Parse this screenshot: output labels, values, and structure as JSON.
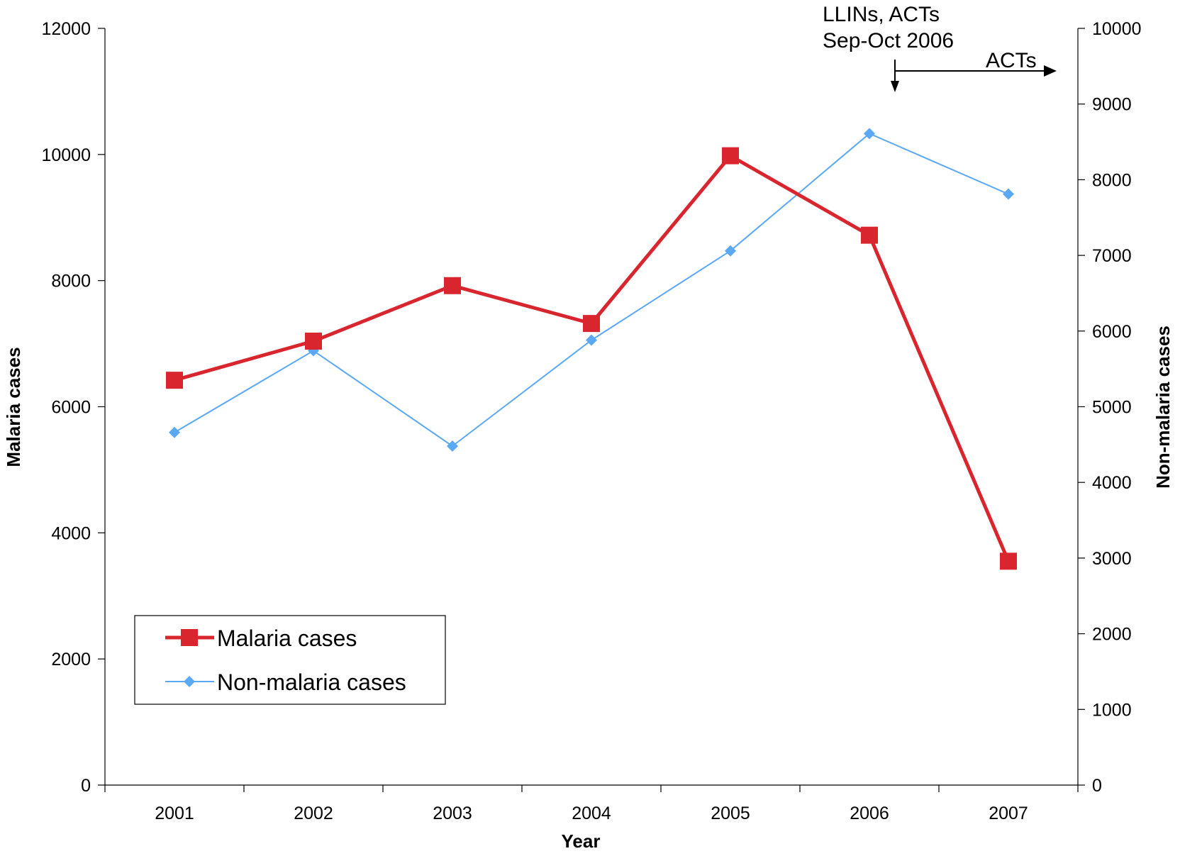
{
  "chart_data": {
    "type": "line",
    "categories": [
      "2001",
      "2002",
      "2003",
      "2004",
      "2005",
      "2006",
      "2007"
    ],
    "series": [
      {
        "name": "Malaria cases",
        "axis": "left",
        "color": "#D9262E",
        "marker": "square",
        "values": [
          6420,
          7040,
          7920,
          7320,
          9980,
          8720,
          3550
        ]
      },
      {
        "name": "Non-malaria cases",
        "axis": "right",
        "color": "#5BA8F5",
        "marker": "diamond",
        "values": [
          4660,
          5740,
          4480,
          5880,
          7060,
          8610,
          7810
        ]
      }
    ],
    "xlabel": "Year",
    "ylabel_left": "Malaria cases",
    "ylabel_right": "Non-malaria cases",
    "ylim_left": [
      0,
      12000
    ],
    "yticks_left": [
      0,
      2000,
      4000,
      6000,
      8000,
      10000,
      12000
    ],
    "ylim_right": [
      0,
      10000
    ],
    "yticks_right": [
      0,
      1000,
      2000,
      3000,
      4000,
      5000,
      6000,
      7000,
      8000,
      9000,
      10000
    ],
    "grid": false,
    "legend_position": "bottom-left",
    "annotations": {
      "intervention_line1": "LLINs, ACTs",
      "intervention_line2": "Sep-Oct 2006",
      "acts_label": "ACTs"
    }
  }
}
